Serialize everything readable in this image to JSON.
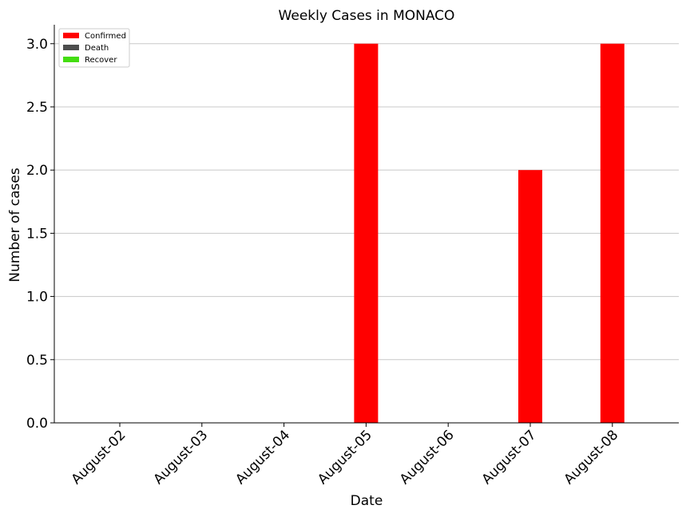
{
  "chart_data": {
    "type": "bar",
    "title": "Weekly Cases in MONACO",
    "xlabel": "Date",
    "ylabel": "Number of cases",
    "categories": [
      "August-02",
      "August-03",
      "August-04",
      "August-05",
      "August-06",
      "August-07",
      "August-08"
    ],
    "series": [
      {
        "name": "Confirmed",
        "values": [
          0,
          0,
          0,
          3,
          0,
          2,
          3
        ],
        "color": "#ff0000"
      },
      {
        "name": "Death",
        "values": [
          0,
          0,
          0,
          0,
          0,
          0,
          0
        ],
        "color": "#4d4d4d"
      },
      {
        "name": "Recover",
        "values": [
          0,
          0,
          0,
          0,
          0,
          0,
          0
        ],
        "color": "#44dd11"
      }
    ],
    "ylim": [
      0,
      3.15
    ],
    "yticks": [
      "0.0",
      "0.5",
      "1.0",
      "1.5",
      "2.0",
      "2.5",
      "3.0"
    ],
    "grid": "horizontal",
    "legend_position": "top-left"
  }
}
